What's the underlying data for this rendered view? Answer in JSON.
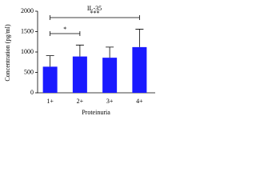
{
  "chart_data": {
    "type": "bar",
    "title": "IL-35",
    "ylabel": "Concentration (pg/ml)",
    "xlabel": "Proteinuria",
    "categories": [
      "1+",
      "2+",
      "3+",
      "4+"
    ],
    "values": [
      640,
      890,
      860,
      1120
    ],
    "errors": [
      270,
      280,
      260,
      440
    ],
    "color": "#1a1aff",
    "ylim": [
      0,
      2000
    ],
    "yticks": [
      0,
      500,
      1000,
      1500,
      2000
    ],
    "annotations": [
      "*",
      "***"
    ]
  }
}
